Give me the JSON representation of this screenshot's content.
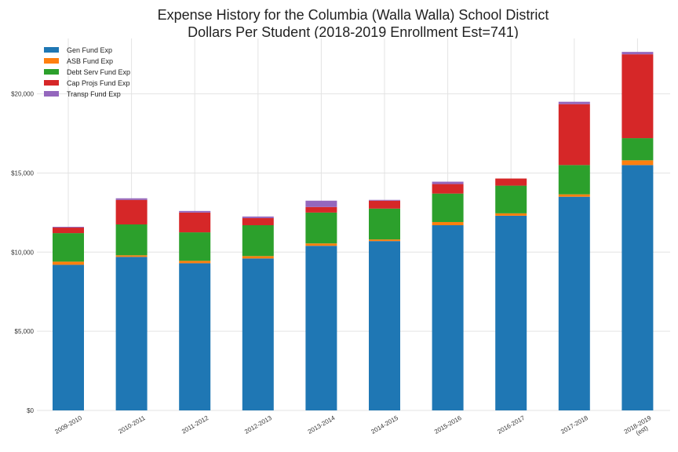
{
  "chart_data": {
    "type": "bar",
    "stacked": true,
    "title": "Expense History for the Columbia (Walla Walla) School District",
    "subtitle": "Dollars Per Student (2018-2019 Enrollment Est=741)",
    "xlabel": "",
    "ylabel": "",
    "ylim": [
      0,
      23500
    ],
    "yticks": [
      0,
      5000,
      10000,
      15000,
      20000
    ],
    "ytick_labels": [
      "$0",
      "$5,000",
      "$10,000",
      "$15,000",
      "$20,000"
    ],
    "grid": true,
    "legend_position": "top-left",
    "categories": [
      [
        "2009-2010"
      ],
      [
        "2010-2011"
      ],
      [
        "2011-2012"
      ],
      [
        "2012-2013"
      ],
      [
        "2013-2014"
      ],
      [
        "2014-2015"
      ],
      [
        "2015-2016"
      ],
      [
        "2016-2017"
      ],
      [
        "2017-2018"
      ],
      [
        "2018-2019",
        "(est)"
      ]
    ],
    "series": [
      {
        "name": "Gen Fund Exp",
        "color": "#1f77b4",
        "values": [
          9200,
          9700,
          9300,
          9600,
          10400,
          10700,
          11700,
          12300,
          13500,
          15500
        ]
      },
      {
        "name": "ASB Fund Exp",
        "color": "#ff7f0e",
        "values": [
          200,
          100,
          150,
          150,
          150,
          100,
          200,
          150,
          150,
          300
        ]
      },
      {
        "name": "Debt Serv Fund Exp",
        "color": "#2ca02c",
        "values": [
          1800,
          1950,
          1800,
          1950,
          1950,
          1950,
          1800,
          1750,
          1850,
          1400
        ]
      },
      {
        "name": "Cap Projs Fund Exp",
        "color": "#d62728",
        "values": [
          350,
          1550,
          1250,
          450,
          350,
          500,
          600,
          450,
          3850,
          5300
        ]
      },
      {
        "name": "Transp Fund Exp",
        "color": "#9467bd",
        "values": [
          50,
          100,
          100,
          100,
          400,
          50,
          150,
          0,
          150,
          150
        ]
      }
    ]
  }
}
